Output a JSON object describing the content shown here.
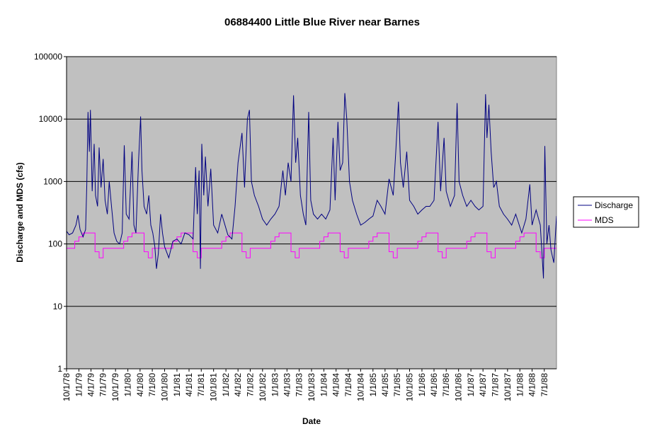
{
  "chart_data": {
    "type": "line",
    "title": "06884400 Little Blue River near Barnes",
    "xlabel": "Date",
    "ylabel": "Discharge and MDS (cfs)",
    "y_scale": "log",
    "ylim": [
      1,
      100000
    ],
    "y_ticks": [
      "1",
      "10",
      "100",
      "1000",
      "10000",
      "100000"
    ],
    "xlim": [
      "1978-10-01",
      "1988-09-30"
    ],
    "x_tick_labels": [
      "10/1/78",
      "1/1/79",
      "4/1/79",
      "7/1/79",
      "10/1/79",
      "1/1/80",
      "4/1/80",
      "7/1/80",
      "10/1/80",
      "1/1/81",
      "4/1/81",
      "7/1/81",
      "10/1/81",
      "1/1/82",
      "4/1/82",
      "7/1/82",
      "10/1/82",
      "1/1/83",
      "4/1/83",
      "7/1/83",
      "10/1/83",
      "1/1/84",
      "4/1/84",
      "7/1/84",
      "10/1/84",
      "1/1/85",
      "4/1/85",
      "7/1/85",
      "10/1/85",
      "1/1/86",
      "4/1/86",
      "7/1/86",
      "10/1/86",
      "1/1/87",
      "4/1/87",
      "7/1/87",
      "10/1/87",
      "1/1/88",
      "4/1/88",
      "7/1/88"
    ],
    "grid": "horizontal major lines",
    "plot_background": "#c0c0c0",
    "legend_position": "right",
    "series": [
      {
        "name": "Discharge",
        "color": "#000080",
        "points": [
          [
            "1978-10-01",
            160
          ],
          [
            "1978-10-20",
            140
          ],
          [
            "1978-11-15",
            150
          ],
          [
            "1978-12-10",
            200
          ],
          [
            "1978-12-25",
            290
          ],
          [
            "1979-01-10",
            170
          ],
          [
            "1979-02-01",
            130
          ],
          [
            "1979-02-20",
            170
          ],
          [
            "1979-03-01",
            900
          ],
          [
            "1979-03-10",
            13000
          ],
          [
            "1979-03-20",
            3000
          ],
          [
            "1979-03-28",
            14000
          ],
          [
            "1979-04-10",
            700
          ],
          [
            "1979-04-25",
            4000
          ],
          [
            "1979-05-05",
            600
          ],
          [
            "1979-05-20",
            400
          ],
          [
            "1979-06-01",
            3500
          ],
          [
            "1979-06-15",
            800
          ],
          [
            "1979-07-01",
            2300
          ],
          [
            "1979-07-15",
            500
          ],
          [
            "1979-08-01",
            300
          ],
          [
            "1979-08-15",
            1000
          ],
          [
            "1979-09-01",
            400
          ],
          [
            "1979-09-20",
            150
          ],
          [
            "1979-10-10",
            110
          ],
          [
            "1979-11-01",
            100
          ],
          [
            "1979-11-20",
            150
          ],
          [
            "1979-12-05",
            3800
          ],
          [
            "1979-12-20",
            300
          ],
          [
            "1980-01-10",
            250
          ],
          [
            "1980-02-01",
            3000
          ],
          [
            "1980-02-15",
            200
          ],
          [
            "1980-03-01",
            150
          ],
          [
            "1980-03-20",
            2000
          ],
          [
            "1980-04-05",
            11000
          ],
          [
            "1980-04-15",
            1500
          ],
          [
            "1980-05-01",
            400
          ],
          [
            "1980-05-20",
            300
          ],
          [
            "1980-06-05",
            600
          ],
          [
            "1980-06-20",
            200
          ],
          [
            "1980-07-05",
            150
          ],
          [
            "1980-07-20",
            90
          ],
          [
            "1980-08-01",
            40
          ],
          [
            "1980-08-15",
            70
          ],
          [
            "1980-09-01",
            300
          ],
          [
            "1980-09-15",
            150
          ],
          [
            "1980-10-01",
            90
          ],
          [
            "1980-11-01",
            60
          ],
          [
            "1980-12-01",
            110
          ],
          [
            "1981-01-01",
            120
          ],
          [
            "1981-02-01",
            100
          ],
          [
            "1981-03-01",
            150
          ],
          [
            "1981-04-01",
            140
          ],
          [
            "1981-05-01",
            120
          ],
          [
            "1981-05-20",
            1700
          ],
          [
            "1981-06-01",
            300
          ],
          [
            "1981-06-15",
            1500
          ],
          [
            "1981-06-25",
            40
          ],
          [
            "1981-07-05",
            4000
          ],
          [
            "1981-07-20",
            600
          ],
          [
            "1981-08-01",
            2500
          ],
          [
            "1981-08-20",
            400
          ],
          [
            "1981-09-10",
            1600
          ],
          [
            "1981-10-01",
            200
          ],
          [
            "1981-11-01",
            150
          ],
          [
            "1981-12-01",
            300
          ],
          [
            "1982-01-15",
            140
          ],
          [
            "1982-02-15",
            120
          ],
          [
            "1982-03-10",
            400
          ],
          [
            "1982-04-01",
            2000
          ],
          [
            "1982-05-01",
            6000
          ],
          [
            "1982-05-20",
            800
          ],
          [
            "1982-06-10",
            10000
          ],
          [
            "1982-06-25",
            14000
          ],
          [
            "1982-07-10",
            1000
          ],
          [
            "1982-08-01",
            600
          ],
          [
            "1982-09-01",
            400
          ],
          [
            "1982-10-01",
            250
          ],
          [
            "1982-11-01",
            200
          ],
          [
            "1982-12-01",
            250
          ],
          [
            "1983-01-01",
            300
          ],
          [
            "1983-02-01",
            400
          ],
          [
            "1983-03-01",
            1500
          ],
          [
            "1983-03-20",
            600
          ],
          [
            "1983-04-10",
            2000
          ],
          [
            "1983-05-01",
            1000
          ],
          [
            "1983-05-20",
            24000
          ],
          [
            "1983-06-05",
            2000
          ],
          [
            "1983-06-20",
            5000
          ],
          [
            "1983-07-10",
            600
          ],
          [
            "1983-08-01",
            300
          ],
          [
            "1983-08-20",
            200
          ],
          [
            "1983-09-10",
            13000
          ],
          [
            "1983-09-25",
            500
          ],
          [
            "1983-10-15",
            300
          ],
          [
            "1983-11-15",
            250
          ],
          [
            "1983-12-15",
            300
          ],
          [
            "1984-01-15",
            250
          ],
          [
            "1984-02-15",
            350
          ],
          [
            "1984-03-10",
            5000
          ],
          [
            "1984-03-25",
            500
          ],
          [
            "1984-04-15",
            9000
          ],
          [
            "1984-05-01",
            1500
          ],
          [
            "1984-05-20",
            2000
          ],
          [
            "1984-06-05",
            26000
          ],
          [
            "1984-06-20",
            10000
          ],
          [
            "1984-07-10",
            1000
          ],
          [
            "1984-08-01",
            500
          ],
          [
            "1984-09-01",
            300
          ],
          [
            "1984-10-01",
            200
          ],
          [
            "1984-11-01",
            220
          ],
          [
            "1984-12-01",
            250
          ],
          [
            "1985-01-01",
            280
          ],
          [
            "1985-02-01",
            500
          ],
          [
            "1985-03-01",
            400
          ],
          [
            "1985-04-01",
            300
          ],
          [
            "1985-05-01",
            1100
          ],
          [
            "1985-06-01",
            600
          ],
          [
            "1985-06-20",
            3000
          ],
          [
            "1985-07-10",
            19000
          ],
          [
            "1985-07-25",
            2000
          ],
          [
            "1985-08-15",
            800
          ],
          [
            "1985-09-10",
            3000
          ],
          [
            "1985-10-01",
            500
          ],
          [
            "1985-11-01",
            400
          ],
          [
            "1985-12-01",
            300
          ],
          [
            "1986-01-01",
            350
          ],
          [
            "1986-02-01",
            400
          ],
          [
            "1986-03-01",
            400
          ],
          [
            "1986-04-01",
            500
          ],
          [
            "1986-05-01",
            9000
          ],
          [
            "1986-05-20",
            700
          ],
          [
            "1986-06-15",
            5000
          ],
          [
            "1986-07-01",
            700
          ],
          [
            "1986-08-01",
            400
          ],
          [
            "1986-09-01",
            600
          ],
          [
            "1986-09-20",
            18000
          ],
          [
            "1986-10-05",
            1000
          ],
          [
            "1986-11-01",
            600
          ],
          [
            "1986-12-01",
            400
          ],
          [
            "1987-01-01",
            500
          ],
          [
            "1987-02-01",
            400
          ],
          [
            "1987-03-01",
            350
          ],
          [
            "1987-04-01",
            400
          ],
          [
            "1987-04-20",
            25000
          ],
          [
            "1987-05-01",
            5000
          ],
          [
            "1987-05-15",
            17000
          ],
          [
            "1987-06-01",
            3000
          ],
          [
            "1987-06-20",
            800
          ],
          [
            "1987-07-10",
            1000
          ],
          [
            "1987-08-01",
            400
          ],
          [
            "1987-09-01",
            300
          ],
          [
            "1987-10-01",
            250
          ],
          [
            "1987-11-01",
            200
          ],
          [
            "1987-12-01",
            300
          ],
          [
            "1988-01-15",
            150
          ],
          [
            "1988-02-15",
            250
          ],
          [
            "1988-03-15",
            900
          ],
          [
            "1988-04-01",
            200
          ],
          [
            "1988-05-01",
            350
          ],
          [
            "1988-06-01",
            200
          ],
          [
            "1988-06-25",
            28
          ],
          [
            "1988-07-05",
            3700
          ],
          [
            "1988-07-20",
            100
          ],
          [
            "1988-08-05",
            200
          ],
          [
            "1988-08-20",
            80
          ],
          [
            "1988-09-10",
            50
          ],
          [
            "1988-09-30",
            280
          ]
        ]
      },
      {
        "name": "MDS",
        "color": "#ff00ff",
        "steps": [
          [
            "10-01",
            85
          ],
          [
            "11-01",
            85
          ],
          [
            "12-01",
            110
          ],
          [
            "01-01",
            130
          ],
          [
            "02-01",
            150
          ],
          [
            "04-01",
            150
          ],
          [
            "05-01",
            75
          ],
          [
            "06-01",
            60
          ],
          [
            "07-01",
            85
          ],
          [
            "08-01",
            85
          ],
          [
            "09-01",
            85
          ]
        ]
      }
    ]
  }
}
